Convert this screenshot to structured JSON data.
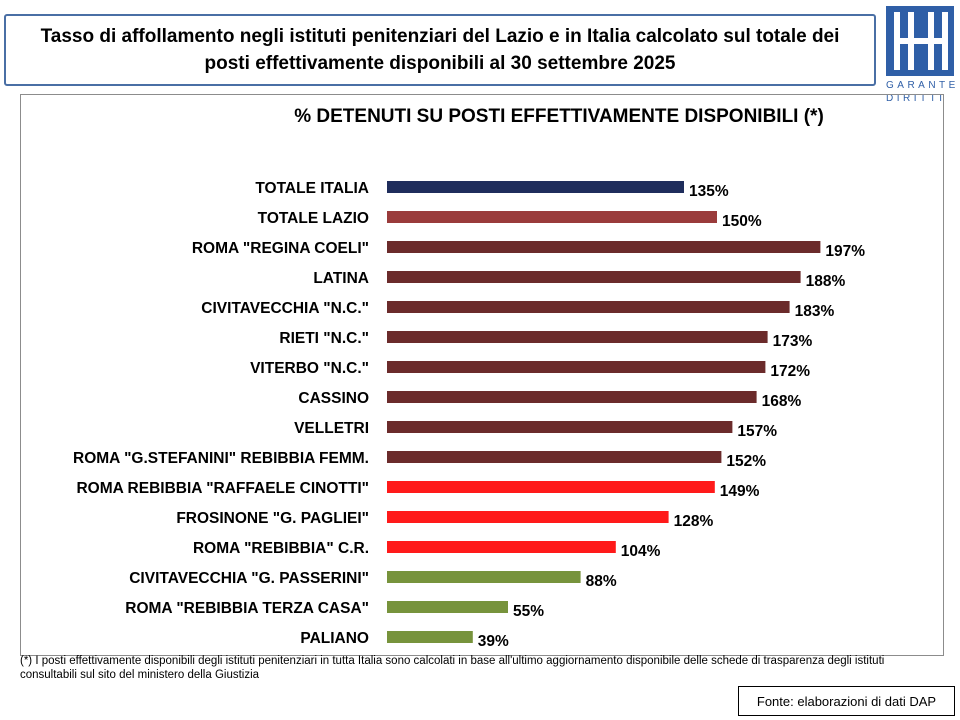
{
  "header": {
    "title": "Tasso di affollamento negli istituti penitenziari del Lazio e in Italia calcolato sul totale dei posti effettivamente disponibili al 30 settembre 2025"
  },
  "logo": {
    "text_line1": "GARANTE",
    "text_line2": "DIRITTI",
    "colors": {
      "blue": "#2f5fa7"
    }
  },
  "chart_data": {
    "type": "bar",
    "orientation": "horizontal",
    "title": "% DETENUTI SU POSTI EFFETTIVAMENTE DISPONIBILI (*)",
    "xlabel": "",
    "ylabel": "",
    "xlim": [
      0,
      200
    ],
    "grid": false,
    "categories": [
      "TOTALE ITALIA",
      "TOTALE LAZIO",
      "ROMA \"REGINA COELI\"",
      "LATINA",
      "CIVITAVECCHIA \"N.C.\"",
      "RIETI \"N.C.\"",
      "VITERBO \"N.C.\"",
      "CASSINO",
      "VELLETRI",
      "ROMA \"G.STEFANINI\" REBIBBIA FEMM.",
      "ROMA REBIBBIA \"RAFFAELE CINOTTI\"",
      "FROSINONE \"G. PAGLIEI\"",
      "ROMA \"REBIBBIA\" C.R.",
      "CIVITAVECCHIA \"G. PASSERINI\"",
      "ROMA \"REBIBBIA TERZA CASA\"",
      "PALIANO"
    ],
    "values": [
      135,
      150,
      197,
      188,
      183,
      173,
      172,
      168,
      157,
      152,
      149,
      128,
      104,
      88,
      55,
      39
    ],
    "value_labels": [
      "135%",
      "150%",
      "197%",
      "188%",
      "183%",
      "173%",
      "172%",
      "168%",
      "157%",
      "152%",
      "149%",
      "128%",
      "104%",
      "88%",
      "55%",
      "39%"
    ],
    "colors": [
      "#1f2d5c",
      "#9a3b3b",
      "#6b2b2b",
      "#6b2b2b",
      "#6b2b2b",
      "#6b2b2b",
      "#6b2b2b",
      "#6b2b2b",
      "#6b2b2b",
      "#6b2b2b",
      "#ff1a1a",
      "#ff1a1a",
      "#ff1a1a",
      "#77933c",
      "#77933c",
      "#77933c"
    ]
  },
  "footnote": "(*) I posti effettivamente disponibili degli istituti penitenziari in tutta Italia sono calcolati in base all'ultimo aggiornamento disponibile delle schede di trasparenza degli istituti consultabili sul sito del ministero della Giustizia",
  "source": "Fonte: elaborazioni di dati DAP"
}
